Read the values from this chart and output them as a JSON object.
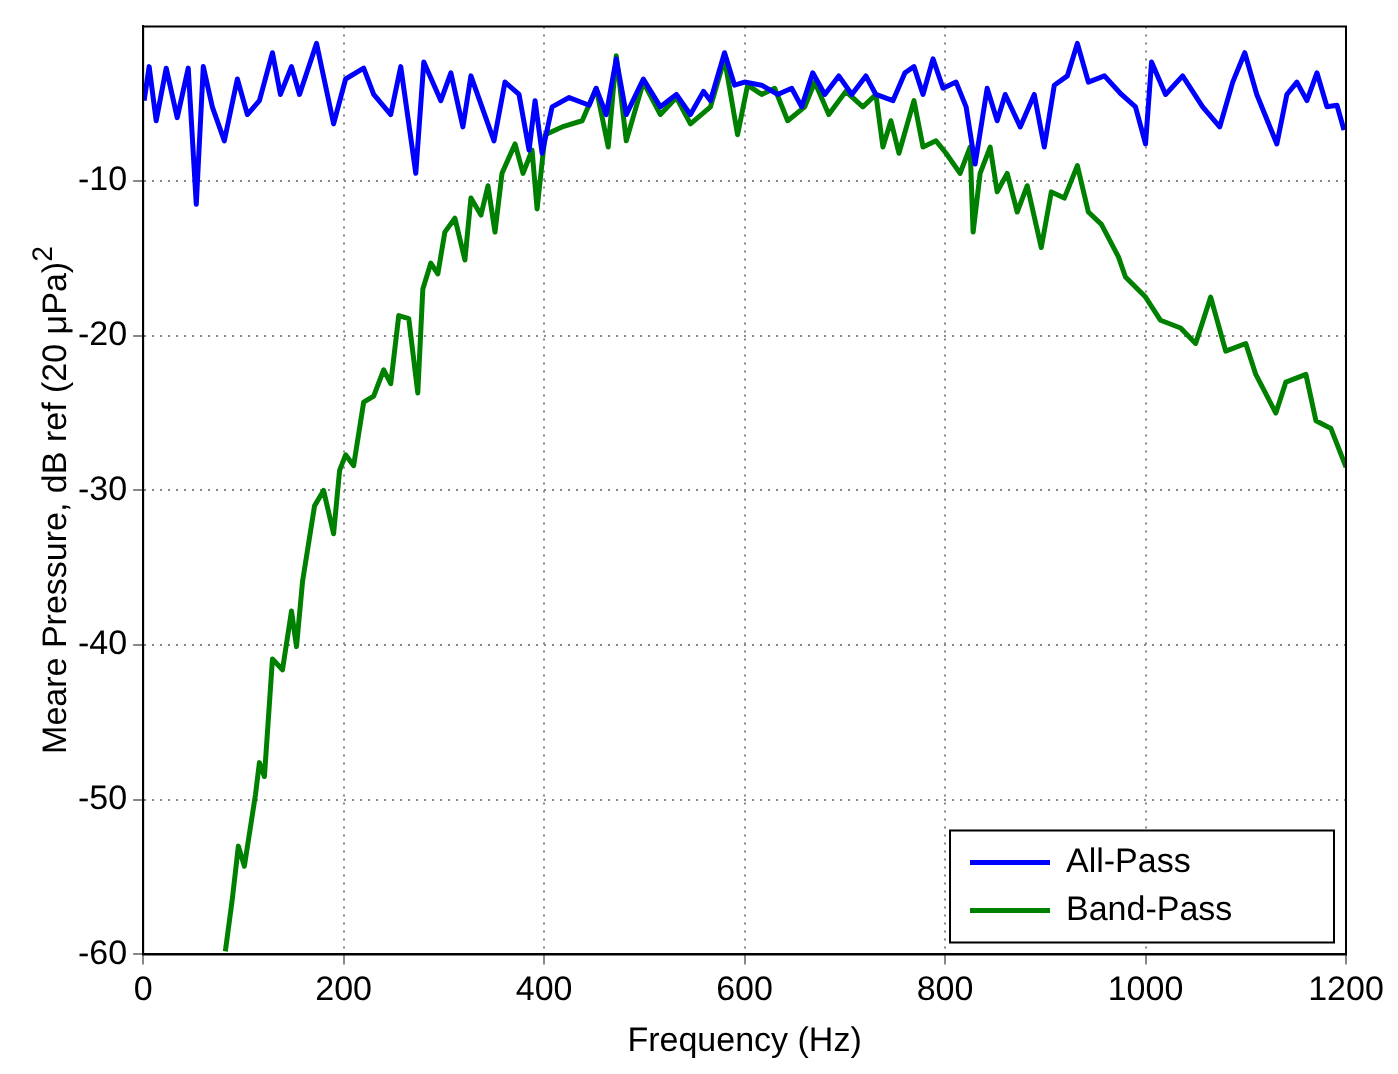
{
  "chart_data": {
    "type": "line",
    "xlabel": "Frequency (Hz)",
    "ylabel": "Meare Pressure, dB ref (20 μPa)$^{2}$",
    "xlim": [
      0,
      1200
    ],
    "xticks": [
      0,
      200,
      400,
      600,
      800,
      1000,
      1200
    ],
    "ylim": [
      -60,
      0
    ],
    "yticks": [
      -60,
      -50,
      -40,
      -30,
      -20,
      -10
    ],
    "grid": true,
    "legend": "bottom right",
    "line_style": "solid",
    "marker": "none",
    "series": [
      {
        "name": "All-Pass",
        "color": "#0000ff",
        "x": [
          1,
          6,
          13,
          23,
          34,
          45,
          53,
          60,
          69,
          81,
          94,
          104,
          116,
          129,
          137,
          148,
          156,
          173,
          190,
          202,
          220,
          230,
          247,
          257,
          272,
          280,
          297,
          307,
          319,
          327,
          350,
          361,
          375,
          385,
          391,
          398,
          408,
          425,
          445,
          452,
          462,
          472,
          482,
          499,
          516,
          532,
          546,
          559,
          566,
          580,
          590,
          600,
          617,
          633,
          647,
          657,
          668,
          680,
          694,
          707,
          721,
          731,
          748,
          760,
          769,
          778,
          788,
          798,
          811,
          821,
          830,
          842,
          852,
          860,
          875,
          889,
          899,
          909,
          922,
          932,
          943,
          959,
          976,
          990,
          1000,
          1006,
          1020,
          1037,
          1057,
          1074,
          1087,
          1099,
          1111,
          1131,
          1141,
          1151,
          1161,
          1171,
          1181,
          1191,
          1198
        ],
        "values": [
          -4.8,
          -2.6,
          -6.1,
          -2.7,
          -5.9,
          -2.7,
          -11.5,
          -2.6,
          -5.2,
          -7.4,
          -3.4,
          -5.7,
          -4.8,
          -1.7,
          -4.4,
          -2.6,
          -4.4,
          -1.1,
          -6.3,
          -3.4,
          -2.7,
          -4.4,
          -5.7,
          -2.6,
          -9.5,
          -2.3,
          -4.8,
          -3,
          -6.5,
          -3.2,
          -7.4,
          -3.6,
          -4.4,
          -8,
          -4.8,
          -8.2,
          -5.2,
          -4.6,
          -5.1,
          -4,
          -5.7,
          -2.1,
          -5.7,
          -3.4,
          -5.2,
          -4.4,
          -5.7,
          -4.2,
          -4.8,
          -1.7,
          -3.8,
          -3.6,
          -3.8,
          -4.4,
          -4,
          -5.2,
          -3,
          -4.4,
          -3.2,
          -4.4,
          -3.2,
          -4.4,
          -4.8,
          -3,
          -2.6,
          -4.4,
          -2.1,
          -4,
          -3.6,
          -5.2,
          -8.9,
          -4,
          -6.1,
          -4.4,
          -6.5,
          -4.4,
          -7.8,
          -3.8,
          -3.2,
          -1.1,
          -3.6,
          -3.2,
          -4.4,
          -5.2,
          -7.6,
          -2.3,
          -4.4,
          -3.2,
          -5.2,
          -6.5,
          -3.6,
          -1.7,
          -4.4,
          -7.6,
          -4.4,
          -3.6,
          -4.8,
          -3,
          -5.2,
          -5.1,
          -6.7
        ]
      },
      {
        "name": "Band-Pass",
        "color": "#008000",
        "x": [
          82,
          89,
          95,
          101,
          112,
          116,
          121,
          129,
          139,
          148,
          153,
          159,
          171,
          180,
          190,
          196,
          202,
          210,
          220,
          230,
          240,
          247,
          255,
          265,
          274,
          279,
          287,
          294,
          301,
          311,
          321,
          327,
          337,
          344,
          351,
          358,
          371,
          379,
          388,
          393,
          401,
          418,
          438,
          452,
          464,
          472,
          482,
          499,
          516,
          532,
          546,
          566,
          580,
          593,
          603,
          617,
          630,
          643,
          660,
          670,
          684,
          701,
          718,
          731,
          738,
          746,
          754,
          769,
          778,
          791,
          801,
          815,
          825,
          828,
          835,
          845,
          852,
          862,
          872,
          882,
          896,
          906,
          919,
          932,
          943,
          956,
          973,
          980,
          1000,
          1015,
          1035,
          1050,
          1065,
          1080,
          1100,
          1110,
          1130,
          1140,
          1160,
          1170,
          1185,
          1200
        ],
        "values": [
          -59.8,
          -56.4,
          -53,
          -54.3,
          -49.7,
          -47.6,
          -48.5,
          -40.9,
          -41.6,
          -37.8,
          -40.1,
          -35.9,
          -31,
          -30,
          -32.8,
          -28.7,
          -27.7,
          -28.4,
          -24.3,
          -23.9,
          -22.2,
          -23.1,
          -18.7,
          -18.9,
          -23.7,
          -17,
          -15.3,
          -16,
          -13.3,
          -12.4,
          -15.1,
          -11.1,
          -12.2,
          -10.3,
          -13.3,
          -9.5,
          -7.6,
          -9.5,
          -8,
          -11.8,
          -7,
          -6.5,
          -6.1,
          -4,
          -7.8,
          -1.9,
          -7.4,
          -3.6,
          -5.7,
          -4.6,
          -6.3,
          -5.2,
          -2.1,
          -7,
          -3.8,
          -4.4,
          -4,
          -6.1,
          -5.2,
          -3.6,
          -5.7,
          -4.2,
          -5.2,
          -4.4,
          -7.8,
          -6.1,
          -8.2,
          -4.8,
          -7.8,
          -7.4,
          -8.2,
          -9.5,
          -7.8,
          -13.3,
          -9.5,
          -7.8,
          -10.7,
          -9.5,
          -12,
          -10.3,
          -14.3,
          -10.7,
          -11.1,
          -9,
          -12,
          -12.8,
          -14.9,
          -16.2,
          -17.5,
          -19,
          -19.5,
          -20.5,
          -17.5,
          -21,
          -20.5,
          -22.5,
          -25,
          -23,
          -22.5,
          -25.5,
          -26,
          -28.5
        ]
      }
    ]
  }
}
